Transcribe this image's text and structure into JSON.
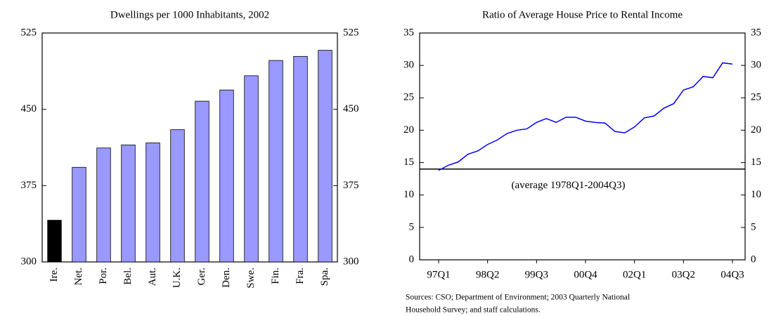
{
  "chart_data": [
    {
      "type": "bar",
      "title": "Dwellings per 1000 Inhabitants, 2002",
      "categories": [
        "Ire.",
        "Net.",
        "Por.",
        "Bel.",
        "Aut.",
        "U.K.",
        "Ger.",
        "Den.",
        "Swe.",
        "Fin.",
        "Fra.",
        "Spa."
      ],
      "values": [
        341,
        393,
        412,
        415,
        417,
        430,
        458,
        469,
        483,
        498,
        502,
        508
      ],
      "colors": [
        "#000000",
        "#9999ff",
        "#9999ff",
        "#9999ff",
        "#9999ff",
        "#9999ff",
        "#9999ff",
        "#9999ff",
        "#9999ff",
        "#9999ff",
        "#9999ff",
        "#9999ff"
      ],
      "ylim": [
        300,
        525
      ],
      "yticks": [
        300,
        375,
        450,
        525
      ],
      "y2lim": [
        300,
        525
      ],
      "y2ticks": [
        300,
        375,
        450,
        525
      ]
    },
    {
      "type": "line",
      "title": "Ratio of Average House Price to Rental Income",
      "categories": [
        "97Q1",
        null,
        null,
        null,
        null,
        "98Q2",
        null,
        null,
        null,
        null,
        "99Q3",
        null,
        null,
        null,
        null,
        "00Q4",
        null,
        null,
        null,
        null,
        "02Q1",
        null,
        null,
        null,
        null,
        "03Q2",
        null,
        null,
        null,
        null,
        "04Q3"
      ],
      "series": [
        {
          "name": "Ratio",
          "color": "#0000ff",
          "values": [
            13.8,
            14.6,
            15.1,
            16.3,
            16.8,
            17.8,
            18.5,
            19.5,
            20.0,
            20.2,
            21.2,
            21.8,
            21.2,
            22.0,
            22.0,
            21.4,
            21.2,
            21.1,
            19.8,
            19.6,
            20.5,
            21.9,
            22.2,
            23.4,
            24.1,
            26.2,
            26.7,
            28.3,
            28.1,
            30.4,
            30.2
          ]
        }
      ],
      "average": {
        "value": 14,
        "label": "(average 1978Q1-2004Q3)"
      },
      "ylim": [
        0,
        35
      ],
      "yticks": [
        0,
        5,
        10,
        15,
        20,
        25,
        30,
        35
      ],
      "y2lim": [
        0,
        35
      ],
      "y2ticks": [
        0,
        5,
        10,
        15,
        20,
        25,
        30,
        35
      ],
      "source": [
        "Sources: CSO; Department of Environment; 2003 Quarterly National",
        "Household Survey; and staff calculations."
      ]
    }
  ]
}
